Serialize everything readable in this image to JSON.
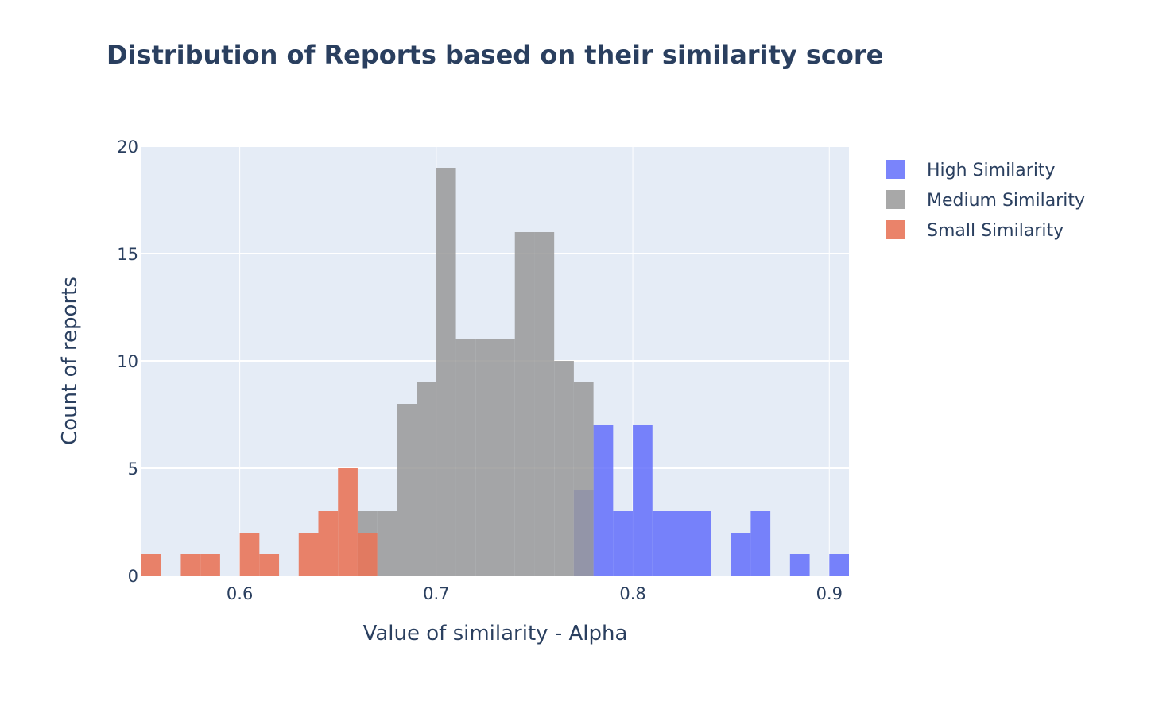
{
  "chart_data": {
    "type": "bar",
    "subtype": "overlaid-histogram",
    "title": "Distribution of Reports based on their similarity score",
    "xlabel": "Value of similarity - Alpha",
    "ylabel": "Count of reports",
    "xlim": [
      0.55,
      0.91
    ],
    "ylim": [
      0,
      20
    ],
    "x_ticks": [
      {
        "value": 0.6,
        "label": "0.6"
      },
      {
        "value": 0.7,
        "label": "0.7"
      },
      {
        "value": 0.8,
        "label": "0.8"
      },
      {
        "value": 0.9,
        "label": "0.9"
      }
    ],
    "y_ticks": [
      {
        "value": 0,
        "label": "0"
      },
      {
        "value": 5,
        "label": "5"
      },
      {
        "value": 10,
        "label": "10"
      },
      {
        "value": 15,
        "label": "15"
      },
      {
        "value": 20,
        "label": "20"
      }
    ],
    "bin_width": 0.01,
    "grid": true,
    "legend_position": "top-right",
    "background_color": "#e5ecf6",
    "series": [
      {
        "name": "High Similarity",
        "color": "#636efa",
        "opacity": 0.85,
        "bins": [
          {
            "start": 0.77,
            "count": 4
          },
          {
            "start": 0.78,
            "count": 7
          },
          {
            "start": 0.79,
            "count": 3
          },
          {
            "start": 0.8,
            "count": 7
          },
          {
            "start": 0.81,
            "count": 3
          },
          {
            "start": 0.82,
            "count": 3
          },
          {
            "start": 0.83,
            "count": 3
          },
          {
            "start": 0.84,
            "count": 0
          },
          {
            "start": 0.85,
            "count": 2
          },
          {
            "start": 0.86,
            "count": 3
          },
          {
            "start": 0.87,
            "count": 0
          },
          {
            "start": 0.88,
            "count": 1
          },
          {
            "start": 0.89,
            "count": 0
          },
          {
            "start": 0.9,
            "count": 1
          }
        ]
      },
      {
        "name": "Medium Similarity",
        "color": "#999999",
        "opacity": 0.85,
        "bins": [
          {
            "start": 0.66,
            "count": 3
          },
          {
            "start": 0.67,
            "count": 3
          },
          {
            "start": 0.68,
            "count": 8
          },
          {
            "start": 0.69,
            "count": 9
          },
          {
            "start": 0.7,
            "count": 19
          },
          {
            "start": 0.71,
            "count": 11
          },
          {
            "start": 0.72,
            "count": 11
          },
          {
            "start": 0.73,
            "count": 11
          },
          {
            "start": 0.74,
            "count": 16
          },
          {
            "start": 0.75,
            "count": 16
          },
          {
            "start": 0.76,
            "count": 10
          },
          {
            "start": 0.77,
            "count": 9
          }
        ]
      },
      {
        "name": "Small Similarity",
        "color": "#e8765a",
        "opacity": 0.9,
        "bins": [
          {
            "start": 0.55,
            "count": 1
          },
          {
            "start": 0.56,
            "count": 0
          },
          {
            "start": 0.57,
            "count": 1
          },
          {
            "start": 0.58,
            "count": 1
          },
          {
            "start": 0.59,
            "count": 0
          },
          {
            "start": 0.6,
            "count": 2
          },
          {
            "start": 0.61,
            "count": 1
          },
          {
            "start": 0.62,
            "count": 0
          },
          {
            "start": 0.63,
            "count": 2
          },
          {
            "start": 0.64,
            "count": 3
          },
          {
            "start": 0.65,
            "count": 5
          },
          {
            "start": 0.66,
            "count": 2
          }
        ]
      }
    ]
  }
}
